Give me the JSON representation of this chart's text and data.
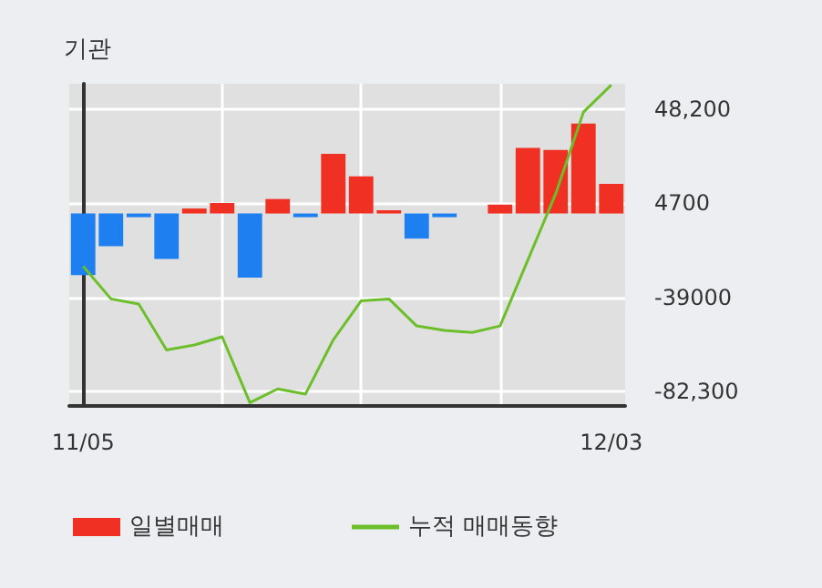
{
  "chart_data": {
    "type": "bar",
    "title": "기관",
    "categories": [
      "11/05",
      null,
      null,
      null,
      null,
      null,
      null,
      null,
      null,
      null,
      null,
      null,
      null,
      null,
      null,
      null,
      null,
      null,
      null,
      "12/03"
    ],
    "series": [
      {
        "name": "일별매매",
        "color": "#f03022",
        "colors": [
          "#1e7ff0",
          "#1e7ff0",
          "#1e7ff0",
          "#1e7ff0",
          "#f03022",
          "#f03022",
          "#1e7ff0",
          "#f03022",
          "#1e7ff0",
          "#f03022",
          "#f03022",
          "#f03022",
          "#1e7ff0",
          "#1e7ff0",
          "#f03022",
          "#f03022",
          "#f03022",
          "#f03022",
          "#f03022",
          "#f03022"
        ],
        "values": [
          -28500,
          -15100,
          -1700,
          -21000,
          2300,
          4900,
          -29700,
          6700,
          -1700,
          27600,
          17200,
          1500,
          -11600,
          -1700,
          0,
          4100,
          30300,
          29400,
          41600,
          13700
        ]
      },
      {
        "name": "누적 매매동향",
        "type": "line",
        "color": "#6cbf2a",
        "values": [
          -24400,
          -39500,
          -41900,
          -63100,
          -60800,
          -57000,
          -87500,
          -81100,
          -83500,
          -58400,
          -40400,
          -39500,
          -52000,
          -54100,
          -55000,
          -52000,
          -21500,
          9100,
          46900,
          59400
        ]
      }
    ],
    "ylim": [
      -89000,
      60000
    ],
    "yticks": [
      {
        "value": -82300,
        "label": "-82,300"
      },
      {
        "value": -39000,
        "label": "-39000"
      },
      {
        "value": 4700,
        "label": "4700"
      },
      {
        "value": 48200,
        "label": "48,200"
      }
    ],
    "grid": true,
    "legend": "bottom",
    "marker": "none",
    "line_style": "solid"
  }
}
